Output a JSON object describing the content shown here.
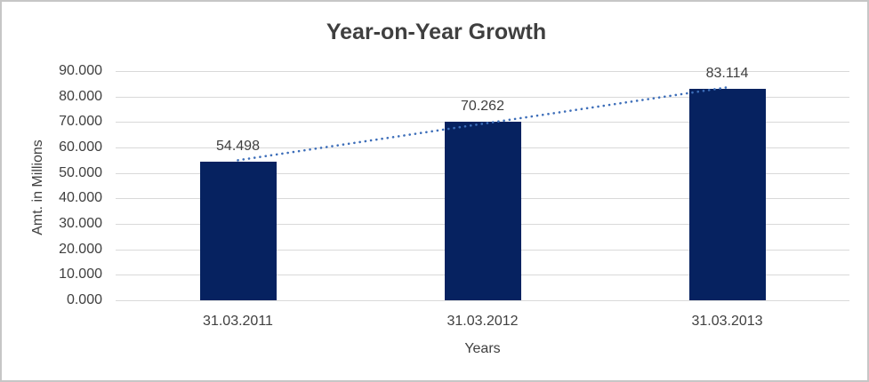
{
  "chart_data": {
    "type": "bar",
    "title": "Year-on-Year Growth",
    "xlabel": "Years",
    "ylabel": "Amt. in Millions",
    "categories": [
      "31.03.2011",
      "31.03.2012",
      "31.03.2013"
    ],
    "values": [
      54.498,
      70.262,
      83.114
    ],
    "data_labels": [
      "54.498",
      "70.262",
      "83.114"
    ],
    "ylim": [
      0,
      90
    ],
    "ytick_labels": [
      "0.000",
      "10.000",
      "20.000",
      "30.000",
      "40.000",
      "50.000",
      "60.000",
      "70.000",
      "80.000",
      "90.000"
    ],
    "grid": "horizontal",
    "legend": "none",
    "trendline": {
      "type": "linear",
      "style": "dotted"
    },
    "colors": {
      "bar": "#062260",
      "trendline": "#3d6eb9",
      "title_text": "#3f3f3f",
      "axis_text": "#404040",
      "gridline": "#d9d9d9",
      "border": "#c6c6c6",
      "background": "#ffffff"
    }
  }
}
